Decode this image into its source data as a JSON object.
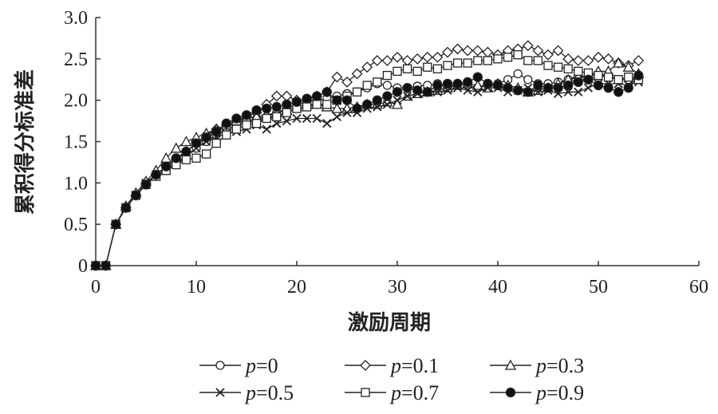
{
  "chart_data": {
    "type": "line",
    "xlabel": "激励周期",
    "ylabel": "累积得分标准差",
    "xlim": [
      0,
      60
    ],
    "ylim": [
      0,
      3.0
    ],
    "x_ticks": [
      "0",
      "10",
      "20",
      "30",
      "40",
      "50",
      "60"
    ],
    "y_ticks": [
      "0",
      "0.5",
      "1.0",
      "1.5",
      "2.0",
      "2.5",
      "3.0"
    ],
    "grid": false,
    "legend_position": "bottom",
    "x": [
      0,
      1,
      2,
      3,
      4,
      5,
      6,
      7,
      8,
      9,
      10,
      11,
      12,
      13,
      14,
      15,
      16,
      17,
      18,
      19,
      20,
      21,
      22,
      23,
      24,
      25,
      26,
      27,
      28,
      29,
      30,
      31,
      32,
      33,
      34,
      35,
      36,
      37,
      38,
      39,
      40,
      41,
      42,
      43,
      44,
      45,
      46,
      47,
      48,
      49,
      50,
      51,
      52,
      53,
      54
    ],
    "series": [
      {
        "name": "p=0",
        "marker": "open-circle",
        "label_var": "p",
        "label_rest": "=0",
        "values": [
          0,
          0,
          0.5,
          0.7,
          0.85,
          0.98,
          1.08,
          1.15,
          1.22,
          1.32,
          1.42,
          1.5,
          1.58,
          1.65,
          1.7,
          1.75,
          1.78,
          1.8,
          1.85,
          1.9,
          1.95,
          1.98,
          2.0,
          2.02,
          2.05,
          2.08,
          2.1,
          2.15,
          2.2,
          2.18,
          2.15,
          2.15,
          2.17,
          2.18,
          2.2,
          2.15,
          2.2,
          2.18,
          2.15,
          2.2,
          2.2,
          2.25,
          2.32,
          2.25,
          2.2,
          2.2,
          2.22,
          2.25,
          2.3,
          2.25,
          2.3,
          2.3,
          2.25,
          2.25,
          2.25
        ]
      },
      {
        "name": "p=0.1",
        "marker": "open-diamond",
        "label_var": "p",
        "label_rest": "=0.1",
        "values": [
          0,
          0,
          0.5,
          0.7,
          0.85,
          1.0,
          1.1,
          1.2,
          1.28,
          1.38,
          1.48,
          1.58,
          1.65,
          1.7,
          1.75,
          1.8,
          1.85,
          1.95,
          2.05,
          2.05,
          2.0,
          2.0,
          2.05,
          2.1,
          2.28,
          2.22,
          2.32,
          2.4,
          2.48,
          2.48,
          2.52,
          2.48,
          2.5,
          2.52,
          2.52,
          2.58,
          2.62,
          2.6,
          2.6,
          2.58,
          2.55,
          2.6,
          2.62,
          2.66,
          2.6,
          2.55,
          2.6,
          2.5,
          2.48,
          2.48,
          2.52,
          2.5,
          2.45,
          2.42,
          2.48
        ]
      },
      {
        "name": "p=0.3",
        "marker": "open-triangle",
        "label_var": "p",
        "label_rest": "=0.3",
        "values": [
          0,
          0,
          0.5,
          0.72,
          0.88,
          1.02,
          1.15,
          1.3,
          1.42,
          1.5,
          1.55,
          1.6,
          1.65,
          1.7,
          1.75,
          1.78,
          1.8,
          1.82,
          1.85,
          1.88,
          1.92,
          1.95,
          1.95,
          1.92,
          1.9,
          1.9,
          1.92,
          1.95,
          1.95,
          1.98,
          1.95,
          2.05,
          2.08,
          2.1,
          2.12,
          2.15,
          2.18,
          2.2,
          2.18,
          2.15,
          2.2,
          2.18,
          2.15,
          2.1,
          2.12,
          2.15,
          2.2,
          2.25,
          2.28,
          2.3,
          2.35,
          2.35,
          2.45,
          2.4,
          2.32
        ]
      },
      {
        "name": "p=0.5",
        "marker": "cross",
        "label_var": "p",
        "label_rest": "=0.5",
        "values": [
          0,
          0,
          0.5,
          0.7,
          0.85,
          1.0,
          1.1,
          1.18,
          1.25,
          1.32,
          1.42,
          1.5,
          1.55,
          1.6,
          1.62,
          1.65,
          1.7,
          1.65,
          1.72,
          1.75,
          1.78,
          1.78,
          1.78,
          1.72,
          1.8,
          1.85,
          1.85,
          1.9,
          1.92,
          1.95,
          2.0,
          2.05,
          2.08,
          2.1,
          2.1,
          2.12,
          2.15,
          2.12,
          2.1,
          2.15,
          2.15,
          2.1,
          2.12,
          2.15,
          2.1,
          2.12,
          2.08,
          2.1,
          2.1,
          2.15,
          2.2,
          2.2,
          2.2,
          2.18,
          2.22
        ]
      },
      {
        "name": "p=0.7",
        "marker": "open-square",
        "label_var": "p",
        "label_rest": "=0.7",
        "values": [
          0,
          0,
          0.5,
          0.7,
          0.85,
          0.98,
          1.08,
          1.15,
          1.22,
          1.28,
          1.3,
          1.35,
          1.48,
          1.58,
          1.65,
          1.7,
          1.72,
          1.78,
          1.8,
          1.85,
          1.9,
          1.92,
          1.95,
          1.95,
          2.0,
          2.05,
          2.1,
          2.18,
          2.22,
          2.3,
          2.35,
          2.38,
          2.35,
          2.4,
          2.38,
          2.42,
          2.45,
          2.45,
          2.48,
          2.48,
          2.5,
          2.52,
          2.55,
          2.48,
          2.48,
          2.42,
          2.4,
          2.38,
          2.35,
          2.33,
          2.3,
          2.28,
          2.25,
          2.28,
          2.25
        ]
      },
      {
        "name": "p=0.9",
        "marker": "filled-circle",
        "label_var": "p",
        "label_rest": "=0.9",
        "values": [
          0,
          0,
          0.5,
          0.7,
          0.85,
          0.98,
          1.1,
          1.2,
          1.3,
          1.38,
          1.48,
          1.55,
          1.62,
          1.72,
          1.78,
          1.82,
          1.88,
          1.9,
          1.92,
          1.95,
          1.98,
          2.02,
          2.05,
          2.1,
          2.0,
          2.0,
          1.9,
          1.95,
          2.0,
          2.05,
          2.1,
          2.15,
          2.12,
          2.1,
          2.18,
          2.2,
          2.2,
          2.22,
          2.28,
          2.2,
          2.18,
          2.15,
          2.12,
          2.1,
          2.18,
          2.15,
          2.15,
          2.18,
          2.22,
          2.25,
          2.18,
          2.15,
          2.1,
          2.15,
          2.3
        ]
      }
    ]
  }
}
